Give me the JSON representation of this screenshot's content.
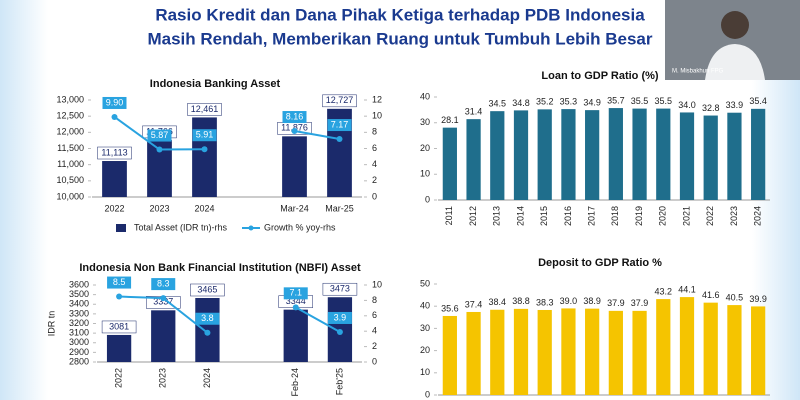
{
  "slide": {
    "title_lines": [
      "Rasio Kredit dan Dana Pihak Ketiga terhadap PDB Indonesia",
      "Masih Rendah, Memberikan Ruang untuk Tumbuh Lebih Besar"
    ],
    "speaker": "M. Misbakhun FPG"
  },
  "chart_data": [
    {
      "type": "combo",
      "title": "Indonesia Banking Asset",
      "categories": [
        "2022",
        "2023",
        "2024",
        null,
        "Mar-24",
        "Mar-25"
      ],
      "series": [
        {
          "name": "Total Asset (IDR tn)-rhs",
          "color": "#1b2a6b",
          "values": [
            11113,
            11766,
            12461,
            null,
            11876,
            12727
          ],
          "value_labels": [
            "11,113",
            "11,766",
            "12,461",
            null,
            "11,876",
            "12,727"
          ]
        },
        {
          "name": "Growth % yoy-rhs",
          "color": "#29a3e0",
          "axis": "y2",
          "values": [
            9.9,
            5.87,
            5.91,
            null,
            8.16,
            7.17
          ],
          "value_labels": [
            "9.90",
            "5.87",
            "5.91",
            null,
            "8.16",
            "7.17"
          ]
        }
      ],
      "ylim": [
        10000,
        13000
      ],
      "yticks": [
        {
          "value": 10000,
          "label": "10,000"
        },
        {
          "value": 10500,
          "label": "10,500"
        },
        {
          "value": 11000,
          "label": "11,000"
        },
        {
          "value": 11500,
          "label": "11,500"
        },
        {
          "value": 12000,
          "label": "12,000"
        },
        {
          "value": 12500,
          "label": "12,500"
        },
        {
          "value": 13000,
          "label": "13,000"
        }
      ],
      "y2lim": [
        0,
        12
      ],
      "y2ticks": [
        0,
        2,
        4,
        6,
        8,
        10,
        12
      ],
      "legend": "bottom"
    },
    {
      "type": "combo",
      "title": "Indonesia Non Bank Financial Institution (NBFI) Asset",
      "ylabel": "IDR tn",
      "categories": [
        "2022",
        "2023",
        "2024",
        null,
        "Feb-24",
        "Feb'25"
      ],
      "series": [
        {
          "color": "#1b2a6b",
          "values": [
            3081,
            3337,
            3465,
            null,
            3344,
            3473
          ]
        },
        {
          "color": "#29a3e0",
          "axis": "y2",
          "values": [
            8.5,
            8.3,
            3.8,
            null,
            7.1,
            3.9
          ]
        }
      ],
      "ylim": [
        2800,
        3600
      ],
      "yticks": [
        2800,
        2900,
        3000,
        3100,
        3200,
        3300,
        3400,
        3500,
        3600
      ],
      "y2lim": [
        0,
        10
      ],
      "y2ticks": [
        0,
        2,
        4,
        6,
        8,
        10
      ],
      "xtick_rotation": -90
    },
    {
      "type": "bar",
      "title": "Loan to GDP Ratio (%)",
      "categories": [
        "2011",
        "2012",
        "2013",
        "2014",
        "2015",
        "2016",
        "2017",
        "2018",
        "2019",
        "2020",
        "2021",
        "2022",
        "2023",
        "2024"
      ],
      "values": [
        28.1,
        31.4,
        34.5,
        34.8,
        35.2,
        35.3,
        34.9,
        35.7,
        35.5,
        35.5,
        34.0,
        32.8,
        33.9,
        35.4
      ],
      "value_labels": [
        "28.1",
        "31.4",
        "34.5",
        "34.8",
        "35.2",
        "35.3",
        "34.9",
        "35.7",
        "35.5",
        "35.5",
        "34.0",
        "32.8",
        "33.9",
        "35.4"
      ],
      "color": "#1f6e8c",
      "ylim": [
        0,
        40
      ],
      "yticks": [
        0,
        10,
        20,
        30,
        40
      ],
      "xtick_rotation": -90
    },
    {
      "type": "bar",
      "title": "Deposit to GDP Ratio %",
      "categories": [
        null,
        null,
        null,
        null,
        null,
        null,
        null,
        null,
        null,
        null,
        null,
        null,
        null,
        null
      ],
      "values": [
        35.6,
        37.4,
        38.4,
        38.8,
        38.3,
        39.0,
        38.9,
        37.9,
        37.9,
        43.2,
        44.1,
        41.6,
        40.5,
        39.9
      ],
      "value_labels": [
        "35.6",
        "37.4",
        "38.4",
        "38.8",
        "38.3",
        "39.0",
        "38.9",
        "37.9",
        "37.9",
        "43.2",
        "44.1",
        "41.6",
        "40.5",
        "39.9"
      ],
      "color": "#f5c400",
      "ylim": [
        0,
        50
      ],
      "yticks": [
        0,
        10,
        20,
        30,
        40,
        50
      ]
    }
  ]
}
